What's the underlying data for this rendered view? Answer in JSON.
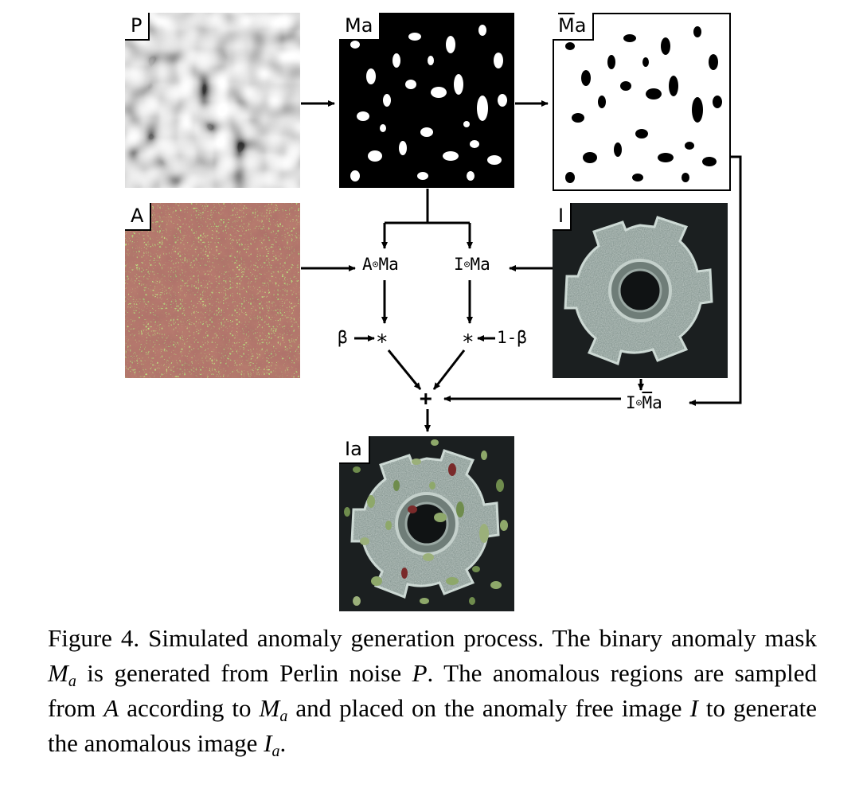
{
  "panels": {
    "perlin": {
      "label": "P"
    },
    "mask": {
      "label_base": "M",
      "label_sub": "a"
    },
    "inverse_mask": {
      "label_base": "M",
      "label_sub": "a"
    },
    "anomaly_source": {
      "label": "A"
    },
    "input_image": {
      "label": "I"
    },
    "output_image": {
      "label_base": "I",
      "label_sub": "a"
    }
  },
  "nodes": {
    "a_times_m": {
      "left": "A",
      "op": "⊙",
      "right": "M",
      "sub": "a"
    },
    "i_times_m": {
      "left": "I",
      "op": "⊙",
      "right": "M",
      "sub": "a"
    },
    "i_times_mbar": {
      "left": "I",
      "op": "⊙",
      "right": "M",
      "sub": "a"
    },
    "beta_left": "β",
    "beta_right": "1-β",
    "star": "∗",
    "plus": "+"
  },
  "caption": {
    "p1": "Figure 4. Simulated anomaly generation process.  The binary anomaly mask ",
    "m1": "M",
    "s1": "a",
    "p2": " is generated from Perlin noise ",
    "m2": "P",
    "p3": ". The anomalous regions are sampled from ",
    "m3": "A",
    "p4": " according to ",
    "m4": "M",
    "s4": "a",
    "p5": " and placed on the anomaly free image ",
    "m5": "I",
    "p6": " to generate the anomalous image ",
    "m6": "I",
    "s6": "a",
    "p7": "."
  },
  "colors": {
    "leaf_green": "#8ea86a",
    "leaf_red": "#7a2a2a",
    "metal_bg": "#1a1d1f",
    "metal_gray": "#a9b7b2"
  }
}
